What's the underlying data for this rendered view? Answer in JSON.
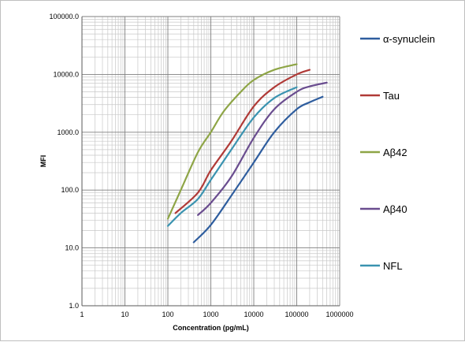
{
  "chart_data": {
    "type": "line",
    "title": "",
    "xlabel": "Concentration (pg/mL)",
    "ylabel": "MFI",
    "xscale": "log",
    "yscale": "log",
    "xlim": [
      1,
      1000000
    ],
    "ylim": [
      1,
      100000
    ],
    "x_tick_labels": [
      "1",
      "10",
      "100",
      "1000",
      "10000",
      "100000",
      "1000000"
    ],
    "y_tick_labels": [
      "1.0",
      "10.0",
      "100.0",
      "1000.0",
      "10000.0",
      "100000.0"
    ],
    "grid": "major and minor",
    "legend_position": "right",
    "series": [
      {
        "name": "α-synuclein",
        "color": "#2e5d9e",
        "points": [
          [
            400,
            12.5
          ],
          [
            1000,
            25
          ],
          [
            3000,
            80
          ],
          [
            10000,
            300
          ],
          [
            30000,
            1000
          ],
          [
            100000,
            2500
          ],
          [
            200000,
            3300
          ],
          [
            400000,
            4100
          ]
        ]
      },
      {
        "name": "Tau",
        "color": "#b03a37",
        "points": [
          [
            150,
            40
          ],
          [
            500,
            90
          ],
          [
            1000,
            220
          ],
          [
            3000,
            700
          ],
          [
            10000,
            2800
          ],
          [
            30000,
            6000
          ],
          [
            100000,
            10000
          ],
          [
            200000,
            12000
          ]
        ]
      },
      {
        "name": "Aβ42",
        "color": "#8ea546",
        "points": [
          [
            100,
            32
          ],
          [
            200,
            100
          ],
          [
            500,
            450
          ],
          [
            1000,
            1000
          ],
          [
            2000,
            2300
          ],
          [
            5000,
            5000
          ],
          [
            10000,
            8000
          ],
          [
            30000,
            12000
          ],
          [
            100000,
            15000
          ]
        ]
      },
      {
        "name": "Aβ40",
        "color": "#6a4d8f",
        "points": [
          [
            500,
            37
          ],
          [
            1000,
            60
          ],
          [
            3000,
            170
          ],
          [
            10000,
            800
          ],
          [
            30000,
            2500
          ],
          [
            100000,
            5000
          ],
          [
            200000,
            6200
          ],
          [
            500000,
            7200
          ]
        ]
      },
      {
        "name": "NFL",
        "color": "#3a93b0",
        "points": [
          [
            100,
            24
          ],
          [
            200,
            40
          ],
          [
            500,
            70
          ],
          [
            1000,
            150
          ],
          [
            3000,
            500
          ],
          [
            10000,
            1800
          ],
          [
            30000,
            3900
          ],
          [
            100000,
            6000
          ]
        ]
      }
    ]
  }
}
